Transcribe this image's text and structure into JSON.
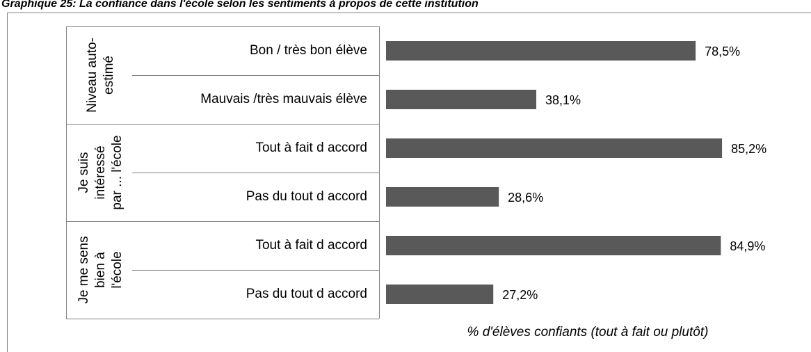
{
  "chart_data": {
    "type": "bar",
    "title": "Graphique 25: La confiance dans l'école selon les sentiments à propos de cette institution",
    "x_label": "% d'élèves confiants (tout à fait ou plutôt)",
    "groups": [
      {
        "lines": [
          "Niveau auto-",
          "estimé"
        ]
      },
      {
        "lines": [
          "Je suis",
          "intéressé",
          "par ... l'école"
        ]
      },
      {
        "lines": [
          "Je me sens",
          "bien à",
          "l'école"
        ]
      }
    ],
    "categories": [
      "Bon / très bon élève",
      "Mauvais /très mauvais élève",
      "Tout à fait d accord",
      "Pas du tout d accord",
      "Tout à fait d accord",
      "Pas du tout d accord"
    ],
    "values": [
      78.5,
      38.1,
      85.2,
      28.6,
      84.9,
      27.2
    ],
    "value_labels": [
      "78,5%",
      "38,1%",
      "85,2%",
      "28,6%",
      "84,9%",
      "27,2%"
    ],
    "color": "#595959",
    "xlim": [
      0,
      100
    ]
  }
}
